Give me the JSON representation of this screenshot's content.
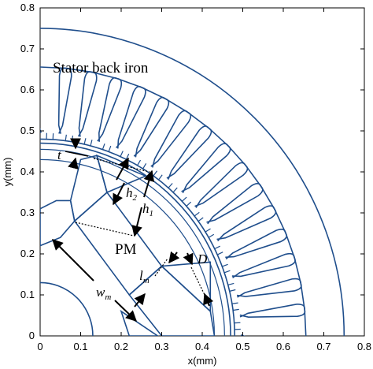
{
  "axes": {
    "xlabel": "x(mm)",
    "ylabel": "y(mm)",
    "xlim": [
      0,
      0.8
    ],
    "ylim": [
      0,
      0.8
    ],
    "xticks": [
      "0",
      "0.1",
      "0.2",
      "0.3",
      "0.4",
      "0.5",
      "0.6",
      "0.7",
      "0.8"
    ],
    "yticks": [
      "0",
      "0.1",
      "0.2",
      "0.3",
      "0.4",
      "0.5",
      "0.6",
      "0.7",
      "0.8"
    ]
  },
  "labels": {
    "stator": "Stator back iron",
    "t": "t",
    "h2": "h",
    "h2_sub": "2",
    "h1": "h",
    "h1_sub": "1",
    "pm": "PM",
    "wm": "w",
    "wm_sub": "m",
    "lm": "l",
    "lm_sub": "m",
    "D": "D"
  },
  "colors": {
    "geometry": "#1f4e8c",
    "dimension": "#000000"
  }
}
